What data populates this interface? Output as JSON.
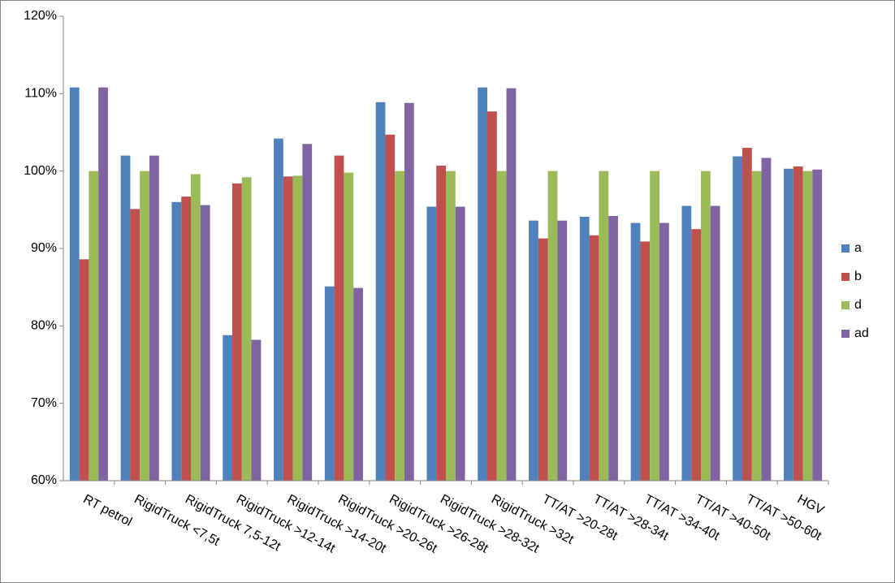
{
  "chart_data": {
    "type": "bar",
    "categories": [
      "RT petrol",
      "RigidTruck <7,5t",
      "RigidTruck 7,5-12t",
      "RigidTruck >12-14t",
      "RigidTruck >14-20t",
      "RigidTruck >20-26t",
      "RigidTruck >26-28t",
      "RigidTruck >28-32t",
      "RigidTruck >32t",
      "TT/AT >20-28t",
      "TT/AT >28-34t",
      "TT/AT >34-40t",
      "TT/AT >40-50t",
      "TT/AT >50-60t",
      "HGV"
    ],
    "series": [
      {
        "name": "a",
        "color": "#4f81bd",
        "values": [
          110.8,
          102,
          96.0,
          78.8,
          104.2,
          85.1,
          108.9,
          95.4,
          110.8,
          93.6,
          94.1,
          93.3,
          95.5,
          101.9,
          100.3
        ]
      },
      {
        "name": "b",
        "color": "#c0504d",
        "values": [
          88.6,
          95.1,
          96.7,
          98.4,
          99.3,
          102,
          104.7,
          100.7,
          107.7,
          91.3,
          91.7,
          90.9,
          92.5,
          103,
          100.6
        ]
      },
      {
        "name": "d",
        "color": "#9bbb59",
        "values": [
          100,
          100,
          99.6,
          99.2,
          99.4,
          99.8,
          100,
          100,
          100,
          100,
          100,
          100,
          100,
          100,
          100
        ]
      },
      {
        "name": "ad",
        "color": "#8064a2",
        "values": [
          110.8,
          102,
          95.6,
          78.2,
          103.5,
          84.9,
          108.8,
          95.4,
          110.7,
          93.6,
          94.2,
          93.3,
          95.5,
          101.7,
          100.2
        ]
      }
    ],
    "ylim": [
      60,
      120
    ],
    "yticks": [
      {
        "value": 60,
        "label": "60%"
      },
      {
        "value": 70,
        "label": "70%"
      },
      {
        "value": 80,
        "label": "80%"
      },
      {
        "value": 90,
        "label": "90%"
      },
      {
        "value": 100,
        "label": "100%"
      },
      {
        "value": 110,
        "label": "110%"
      },
      {
        "value": 120,
        "label": "120%"
      }
    ],
    "grid": false,
    "legend": "right"
  }
}
